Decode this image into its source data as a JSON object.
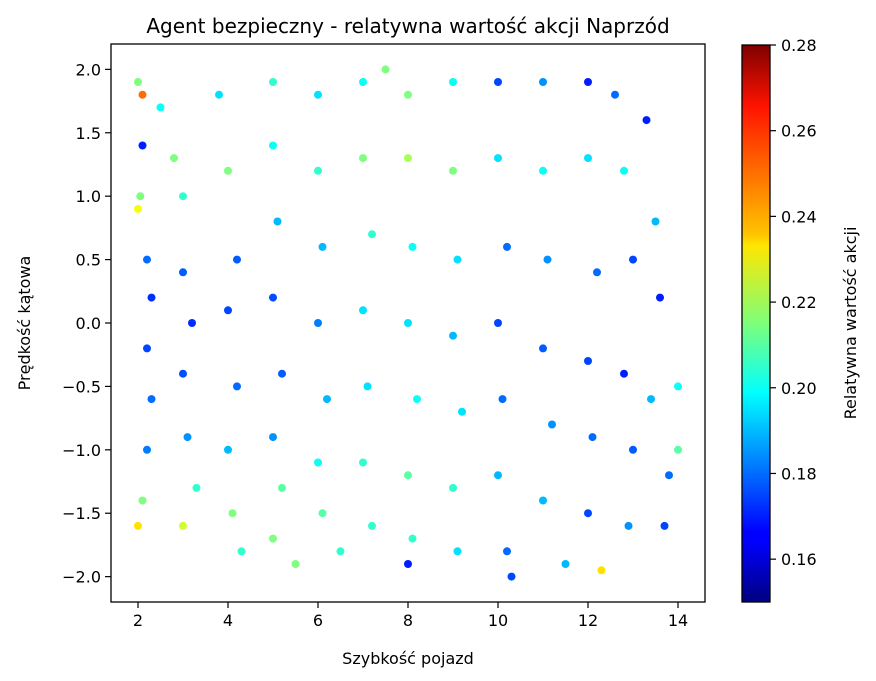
{
  "chart_data": {
    "type": "scatter",
    "title": "Agent bezpieczny - relatywna wartość akcji Naprzód",
    "xlabel": "Szybkość pojazd",
    "ylabel": "Prędkość kątowa",
    "xlim": [
      1.4,
      14.6
    ],
    "ylim": [
      -2.2,
      2.2
    ],
    "xticks": [
      2,
      4,
      6,
      8,
      10,
      12,
      14
    ],
    "yticks": [
      -2.0,
      -1.5,
      -1.0,
      -0.5,
      0.0,
      0.5,
      1.0,
      1.5,
      2.0
    ],
    "xtick_labels": [
      "2",
      "4",
      "6",
      "8",
      "10",
      "12",
      "14"
    ],
    "ytick_labels": [
      "−2.0",
      "−1.5",
      "−1.0",
      "−0.5",
      "0.0",
      "0.5",
      "1.0",
      "1.5",
      "2.0"
    ],
    "grid": false,
    "colormap": "jet",
    "colorbar": {
      "label": "Relatywna wartość akcji",
      "range": [
        0.15,
        0.28
      ],
      "ticks": [
        0.16,
        0.18,
        0.2,
        0.22,
        0.24,
        0.26,
        0.28
      ],
      "tick_labels": [
        "0.16",
        "0.18",
        "0.20",
        "0.22",
        "0.24",
        "0.26",
        "0.28"
      ]
    },
    "series": [
      {
        "points": [
          [
            2.0,
            1.9,
            0.215
          ],
          [
            2.1,
            1.8,
            0.25
          ],
          [
            2.1,
            1.4,
            0.17
          ],
          [
            2.05,
            1.0,
            0.215
          ],
          [
            2.0,
            0.9,
            0.23
          ],
          [
            2.2,
            0.5,
            0.18
          ],
          [
            2.3,
            0.2,
            0.172
          ],
          [
            2.2,
            -0.2,
            0.175
          ],
          [
            2.3,
            -0.6,
            0.18
          ],
          [
            2.2,
            -1.0,
            0.182
          ],
          [
            2.1,
            -1.4,
            0.215
          ],
          [
            2.0,
            -1.6,
            0.235
          ],
          [
            2.5,
            1.7,
            0.2
          ],
          [
            2.8,
            1.3,
            0.215
          ],
          [
            3.0,
            1.0,
            0.205
          ],
          [
            3.0,
            0.4,
            0.178
          ],
          [
            3.2,
            0.0,
            0.172
          ],
          [
            3.0,
            -0.4,
            0.176
          ],
          [
            3.1,
            -0.9,
            0.185
          ],
          [
            3.3,
            -1.3,
            0.205
          ],
          [
            3.0,
            -1.6,
            0.225
          ],
          [
            3.8,
            1.8,
            0.195
          ],
          [
            4.0,
            1.2,
            0.215
          ],
          [
            4.2,
            0.5,
            0.178
          ],
          [
            4.0,
            0.1,
            0.175
          ],
          [
            4.2,
            -0.5,
            0.18
          ],
          [
            4.0,
            -1.0,
            0.19
          ],
          [
            4.1,
            -1.5,
            0.215
          ],
          [
            4.3,
            -1.8,
            0.205
          ],
          [
            5.0,
            1.9,
            0.205
          ],
          [
            5.0,
            1.4,
            0.2
          ],
          [
            5.1,
            0.8,
            0.19
          ],
          [
            5.0,
            0.2,
            0.176
          ],
          [
            5.2,
            -0.4,
            0.178
          ],
          [
            5.0,
            -0.9,
            0.185
          ],
          [
            5.2,
            -1.3,
            0.21
          ],
          [
            5.0,
            -1.7,
            0.215
          ],
          [
            5.5,
            -1.9,
            0.215
          ],
          [
            6.0,
            1.8,
            0.195
          ],
          [
            6.0,
            1.2,
            0.205
          ],
          [
            6.1,
            0.6,
            0.19
          ],
          [
            6.0,
            0.0,
            0.182
          ],
          [
            6.2,
            -0.6,
            0.19
          ],
          [
            6.0,
            -1.1,
            0.2
          ],
          [
            6.1,
            -1.5,
            0.21
          ],
          [
            6.5,
            -1.8,
            0.205
          ],
          [
            7.0,
            1.9,
            0.2
          ],
          [
            7.0,
            1.3,
            0.215
          ],
          [
            7.2,
            0.7,
            0.205
          ],
          [
            7.0,
            0.1,
            0.195
          ],
          [
            7.1,
            -0.5,
            0.195
          ],
          [
            7.0,
            -1.1,
            0.205
          ],
          [
            7.2,
            -1.6,
            0.205
          ],
          [
            7.5,
            2.0,
            0.215
          ],
          [
            8.0,
            1.8,
            0.215
          ],
          [
            8.0,
            1.3,
            0.22
          ],
          [
            8.1,
            0.6,
            0.2
          ],
          [
            8.0,
            0.0,
            0.195
          ],
          [
            8.2,
            -0.6,
            0.2
          ],
          [
            8.0,
            -1.2,
            0.21
          ],
          [
            8.1,
            -1.7,
            0.205
          ],
          [
            8.0,
            -1.9,
            0.17
          ],
          [
            9.0,
            1.9,
            0.2
          ],
          [
            9.0,
            1.2,
            0.215
          ],
          [
            9.1,
            0.5,
            0.195
          ],
          [
            9.0,
            -0.1,
            0.19
          ],
          [
            9.2,
            -0.7,
            0.195
          ],
          [
            9.0,
            -1.3,
            0.205
          ],
          [
            9.1,
            -1.8,
            0.195
          ],
          [
            10.0,
            1.9,
            0.175
          ],
          [
            10.0,
            1.3,
            0.195
          ],
          [
            10.2,
            0.6,
            0.18
          ],
          [
            10.0,
            0.0,
            0.175
          ],
          [
            10.1,
            -0.6,
            0.18
          ],
          [
            10.0,
            -1.2,
            0.19
          ],
          [
            10.2,
            -1.8,
            0.18
          ],
          [
            10.3,
            -2.0,
            0.175
          ],
          [
            11.0,
            1.9,
            0.185
          ],
          [
            11.0,
            1.2,
            0.2
          ],
          [
            11.1,
            0.5,
            0.185
          ],
          [
            11.0,
            -0.2,
            0.178
          ],
          [
            11.2,
            -0.8,
            0.185
          ],
          [
            11.0,
            -1.4,
            0.19
          ],
          [
            11.5,
            -1.9,
            0.19
          ],
          [
            12.0,
            1.9,
            0.17
          ],
          [
            12.0,
            1.3,
            0.195
          ],
          [
            12.2,
            0.4,
            0.18
          ],
          [
            12.0,
            -0.3,
            0.175
          ],
          [
            12.1,
            -0.9,
            0.18
          ],
          [
            12.0,
            -1.5,
            0.175
          ],
          [
            12.3,
            -1.95,
            0.235
          ],
          [
            12.6,
            1.8,
            0.18
          ],
          [
            12.8,
            1.2,
            0.2
          ],
          [
            13.0,
            0.5,
            0.175
          ],
          [
            12.8,
            -0.4,
            0.17
          ],
          [
            13.0,
            -1.0,
            0.178
          ],
          [
            12.9,
            -1.6,
            0.185
          ],
          [
            13.3,
            1.6,
            0.17
          ],
          [
            13.5,
            0.8,
            0.19
          ],
          [
            13.6,
            0.2,
            0.17
          ],
          [
            13.4,
            -0.6,
            0.19
          ],
          [
            13.8,
            -1.2,
            0.18
          ],
          [
            13.7,
            -1.6,
            0.175
          ],
          [
            14.0,
            -1.0,
            0.21
          ],
          [
            14.0,
            -0.5,
            0.2
          ]
        ]
      }
    ]
  }
}
